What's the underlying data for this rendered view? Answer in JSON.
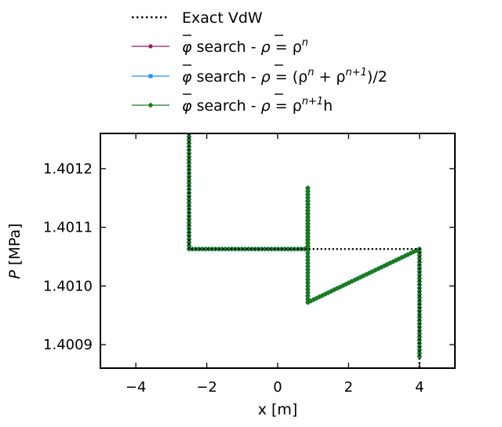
{
  "chart_data": {
    "type": "line",
    "xlabel": "x [m]",
    "ylabel": "P [MPa]",
    "ylabel_parts": [
      "P",
      " [MPa]"
    ],
    "xlim": [
      -5,
      5
    ],
    "ylim": [
      1.40086,
      1.40126
    ],
    "x_ticks": [
      -4,
      -2,
      0,
      2,
      4
    ],
    "x_tick_labels": [
      "−4",
      "−2",
      "0",
      "2",
      "4"
    ],
    "y_ticks": [
      1.4009,
      1.401,
      1.4011,
      1.4012
    ],
    "y_tick_labels": [
      "1.4009",
      "1.4010",
      "1.4011",
      "1.4012"
    ],
    "grid": false,
    "legend_position": "above the plot, centered",
    "series": [
      {
        "name": "Exact VdW",
        "label_parts": [
          "Exact VdW"
        ],
        "color": "#000000",
        "style": "dotted",
        "marker": "none",
        "x": [
          -2.5,
          -2.5,
          4.0,
          4.0
        ],
        "y": [
          1.40126,
          1.401063,
          1.401063,
          1.40086
        ]
      },
      {
        "name": "φ̄ search - ρ̄ = ρⁿ",
        "label_parts": [
          "φ",
          " search - ",
          "ρ",
          " = ρ",
          "n"
        ],
        "color": "#a0185a",
        "style": "solid",
        "marker": "circle",
        "x": [
          -2.5,
          -2.5,
          0.85,
          0.85,
          0.85,
          4.0,
          4.0
        ],
        "y": [
          1.40126,
          1.401063,
          1.401063,
          1.401167,
          1.400972,
          1.401063,
          1.40088
        ]
      },
      {
        "name": "φ̄ search - ρ̄ = (ρⁿ + ρⁿ⁺¹)/2",
        "label_parts": [
          "φ",
          " search - ",
          "ρ",
          " = (ρ",
          "n",
          " + ρ",
          "n+1",
          ")/2"
        ],
        "color": "#1e90ff",
        "style": "solid",
        "marker": "square",
        "x": [
          -2.5,
          -2.5,
          0.85,
          0.85,
          0.85,
          4.0,
          4.0
        ],
        "y": [
          1.40126,
          1.401063,
          1.401063,
          1.401167,
          1.400972,
          1.401063,
          1.40088
        ]
      },
      {
        "name": "φ̄ search - ρ̄ = ρⁿ⁺¹h",
        "label_parts": [
          "φ",
          " search - ",
          "ρ",
          " = ρ",
          "n+1",
          "h"
        ],
        "color": "#1a7a1a",
        "style": "solid",
        "marker": "diamond",
        "x": [
          -2.5,
          -2.5,
          0.85,
          0.85,
          0.85,
          4.0,
          4.0
        ],
        "y": [
          1.40126,
          1.401063,
          1.401063,
          1.401167,
          1.400972,
          1.401063,
          1.40088
        ]
      }
    ]
  }
}
